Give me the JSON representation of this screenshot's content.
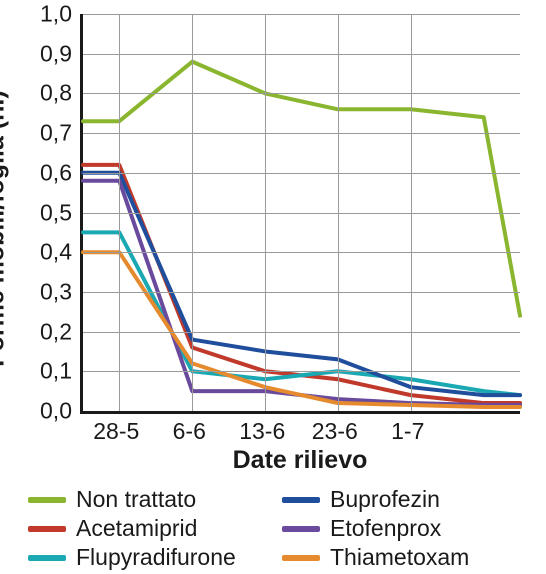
{
  "chart": {
    "type": "line",
    "ylabel": "Forme mobili/foglia (n.)",
    "xlabel": "Date rilievo",
    "ylim": [
      0.0,
      1.0
    ],
    "ytick_step": 0.1,
    "yticks": [
      "0,0",
      "0,1",
      "0,2",
      "0,3",
      "0,4",
      "0,5",
      "0,6",
      "0,7",
      "0,8",
      "0,9",
      "1,0"
    ],
    "x_positions": [
      0,
      0.083,
      0.25,
      0.417,
      0.583,
      0.75,
      0.917,
      1.0
    ],
    "xtick_indices": [
      1,
      2,
      3,
      4,
      5
    ],
    "xtick_labels": [
      "28-5",
      "6-6",
      "13-6",
      "23-6",
      "1-7"
    ],
    "background_color": "#ffffff",
    "grid_color": "#9a9a9a",
    "axis_color": "#1a1a1a",
    "title_fontsize": 25,
    "label_fontsize": 25,
    "tick_fontsize": 23,
    "line_width": 4,
    "series": [
      {
        "name": "Non trattato",
        "color": "#8ab52f",
        "y": [
          0.73,
          0.73,
          0.88,
          0.8,
          0.76,
          0.76,
          0.74,
          0.24
        ]
      },
      {
        "name": "Acetamiprid",
        "color": "#c0392b",
        "y": [
          0.62,
          0.62,
          0.16,
          0.1,
          0.08,
          0.04,
          0.02,
          0.02
        ]
      },
      {
        "name": "Flupyradifurone",
        "color": "#1aa8b3",
        "y": [
          0.45,
          0.45,
          0.1,
          0.08,
          0.1,
          0.08,
          0.05,
          0.04
        ]
      },
      {
        "name": "Buprofezin",
        "color": "#1f4e9c",
        "y": [
          0.6,
          0.6,
          0.18,
          0.15,
          0.13,
          0.06,
          0.04,
          0.04
        ]
      },
      {
        "name": "Etofenprox",
        "color": "#6a4a9c",
        "y": [
          0.58,
          0.58,
          0.05,
          0.05,
          0.03,
          0.02,
          0.015,
          0.015
        ]
      },
      {
        "name": "Thiametoxam",
        "color": "#e68a2e",
        "y": [
          0.4,
          0.4,
          0.12,
          0.06,
          0.02,
          0.015,
          0.01,
          0.01
        ]
      }
    ],
    "legend_order": [
      0,
      3,
      1,
      4,
      2,
      5
    ]
  }
}
